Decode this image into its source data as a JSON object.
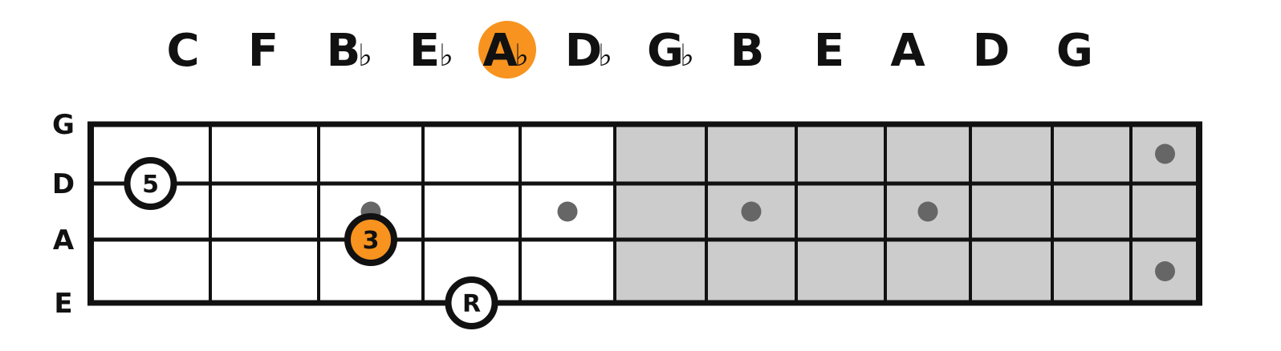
{
  "colors": {
    "accent": "#f7931e",
    "board_shaded": "#cccccc",
    "board_open": "#ffffff",
    "line": "#111111",
    "inlay_dot": "#666666",
    "text": "#111111"
  },
  "circle_of_fourths": [
    {
      "letter": "C",
      "accidental": "",
      "highlighted": false
    },
    {
      "letter": "F",
      "accidental": "",
      "highlighted": false
    },
    {
      "letter": "B",
      "accidental": "♭",
      "highlighted": false
    },
    {
      "letter": "E",
      "accidental": "♭",
      "highlighted": false
    },
    {
      "letter": "A",
      "accidental": "♭",
      "highlighted": true
    },
    {
      "letter": "D",
      "accidental": "♭",
      "highlighted": false
    },
    {
      "letter": "G",
      "accidental": "♭",
      "highlighted": false
    },
    {
      "letter": "B",
      "accidental": "",
      "highlighted": false
    },
    {
      "letter": "E",
      "accidental": "",
      "highlighted": false
    },
    {
      "letter": "A",
      "accidental": "",
      "highlighted": false
    },
    {
      "letter": "D",
      "accidental": "",
      "highlighted": false
    },
    {
      "letter": "G",
      "accidental": "",
      "highlighted": false
    }
  ],
  "fretboard": {
    "strings": [
      "G",
      "D",
      "A",
      "E"
    ],
    "frets": 12,
    "open_frets": 5,
    "inlays": [
      {
        "between": "D-A",
        "fret": 3
      },
      {
        "between": "D-A",
        "fret": 5
      },
      {
        "between": "D-A",
        "fret": 7
      },
      {
        "between": "D-A",
        "fret": 9
      },
      {
        "between": "G-D",
        "fret": 12
      },
      {
        "between": "A-E",
        "fret": 12
      }
    ],
    "markers": [
      {
        "label": "5",
        "string": "D",
        "fret": 1,
        "style": "outline"
      },
      {
        "label": "3",
        "string": "A",
        "fret": 3,
        "style": "filled"
      },
      {
        "label": "R",
        "string": "E",
        "fret": 4,
        "style": "outline"
      }
    ]
  }
}
